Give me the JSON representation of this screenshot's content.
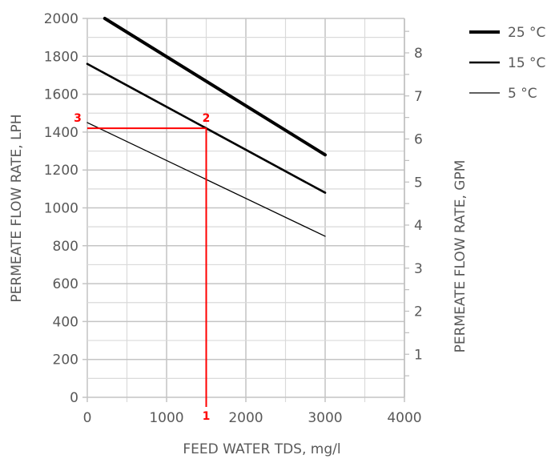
{
  "chart_data": {
    "type": "line",
    "xlabel": "FEED WATER TDS, mg/l",
    "ylabel": "PERMEATE FLOW RATE, LPH",
    "y2label": "PERMEATE FLOW RATE, GPM",
    "xlim": [
      0,
      4000
    ],
    "ylim": [
      0,
      2000
    ],
    "y2lim": [
      0,
      8.8
    ],
    "xticks": [
      "0",
      "1000",
      "2000",
      "3000",
      "4000"
    ],
    "yticks": [
      "0",
      "200",
      "400",
      "600",
      "800",
      "1000",
      "1200",
      "1400",
      "1600",
      "1800",
      "2000"
    ],
    "y2ticks": [
      "1",
      "2",
      "3",
      "4",
      "5",
      "6",
      "7",
      "8"
    ],
    "grid": true,
    "legend_position": "top-right",
    "series": [
      {
        "name": "25 °C",
        "weight": "thick",
        "x": [
          220,
          3000
        ],
        "y": [
          2000,
          1280
        ]
      },
      {
        "name": "15 °C",
        "weight": "medium",
        "x": [
          0,
          3000
        ],
        "y": [
          1760,
          1080
        ]
      },
      {
        "name": "5 °C",
        "weight": "thin",
        "x": [
          0,
          3000
        ],
        "y": [
          1450,
          850
        ]
      }
    ],
    "annotations": {
      "color": "#ff0000",
      "tds_value": 1500,
      "flow_value": 1420,
      "labels": [
        "1",
        "2",
        "3"
      ]
    }
  }
}
